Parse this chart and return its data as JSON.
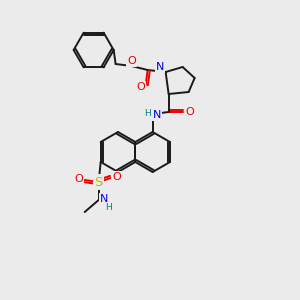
{
  "bg_color": "#ebebeb",
  "bond_color": "#1a1a1a",
  "atom_colors": {
    "N": "#0000ee",
    "O": "#ee0000",
    "S": "#bbbb00",
    "H_label": "#008080",
    "C": "#1a1a1a"
  },
  "bond_lw": 1.4,
  "font_size": 8.0
}
